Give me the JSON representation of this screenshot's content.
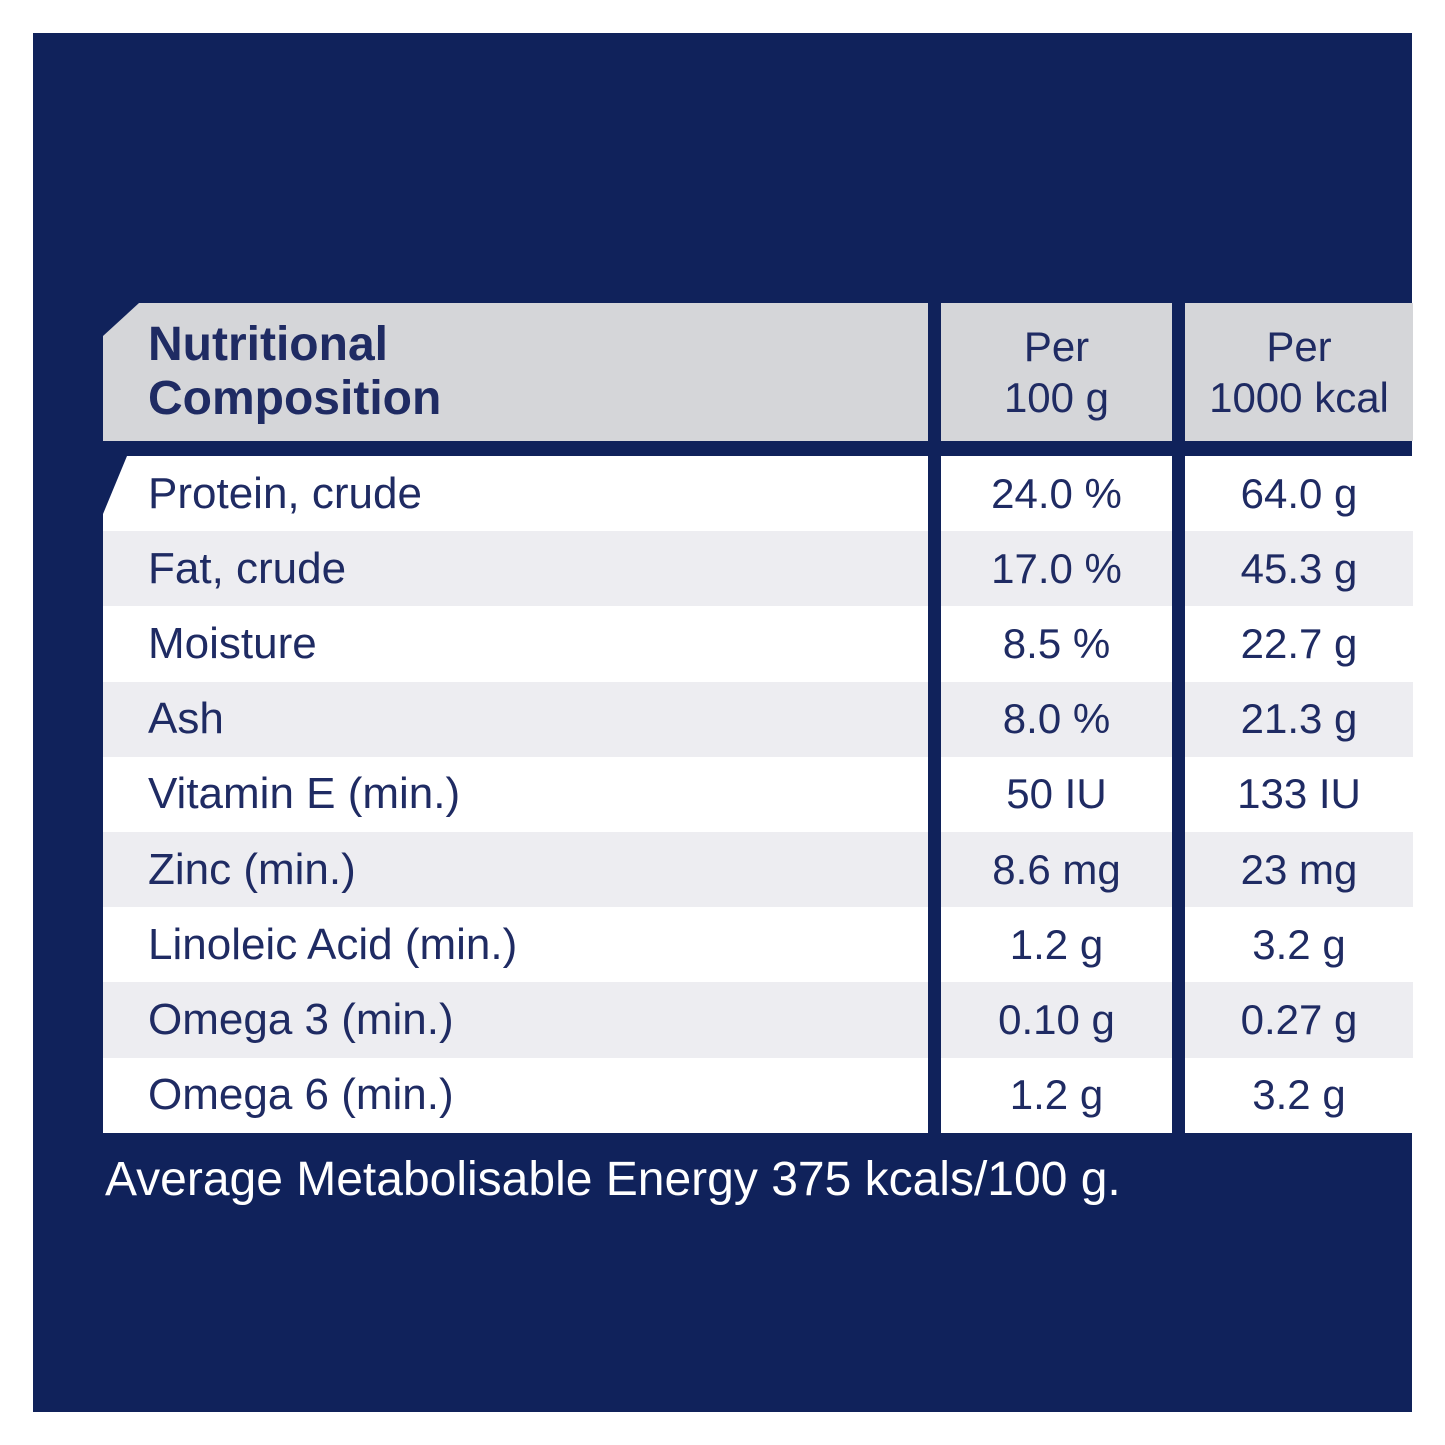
{
  "colors": {
    "page_border": "#FFFFFF",
    "panel_navy": "#10225B",
    "header_gray": "#D5D6D9",
    "row_gray": "#EDEDF1",
    "row_white": "#FFFFFF",
    "text_navy": "#1F2B63",
    "footer_text_white": "#FFFFFF"
  },
  "table": {
    "title": "Nutritional\nComposition",
    "columns": [
      {
        "label": "Per\n100 g"
      },
      {
        "label": "Per\n1000 kcal"
      }
    ],
    "rows": [
      {
        "nutrient": "Protein, crude",
        "per_100g": "24.0 %",
        "per_1000kcal": "64.0 g"
      },
      {
        "nutrient": "Fat, crude",
        "per_100g": "17.0 %",
        "per_1000kcal": "45.3 g"
      },
      {
        "nutrient": "Moisture",
        "per_100g": "8.5 %",
        "per_1000kcal": "22.7 g"
      },
      {
        "nutrient": "Ash",
        "per_100g": "8.0 %",
        "per_1000kcal": "21.3 g"
      },
      {
        "nutrient": "Vitamin E (min.)",
        "per_100g": "50 IU",
        "per_1000kcal": "133 IU"
      },
      {
        "nutrient": "Zinc (min.)",
        "per_100g": "8.6 mg",
        "per_1000kcal": "23 mg"
      },
      {
        "nutrient": "Linoleic Acid (min.)",
        "per_100g": "1.2 g",
        "per_1000kcal": "3.2 g"
      },
      {
        "nutrient": "Omega 3 (min.)",
        "per_100g": "0.10 g",
        "per_1000kcal": "0.27 g"
      },
      {
        "nutrient": "Omega 6 (min.)",
        "per_100g": "1.2 g",
        "per_1000kcal": "3.2 g"
      }
    ]
  },
  "footer": {
    "energy_note": "Average Metabolisable Energy 375 kcals/100 g."
  }
}
